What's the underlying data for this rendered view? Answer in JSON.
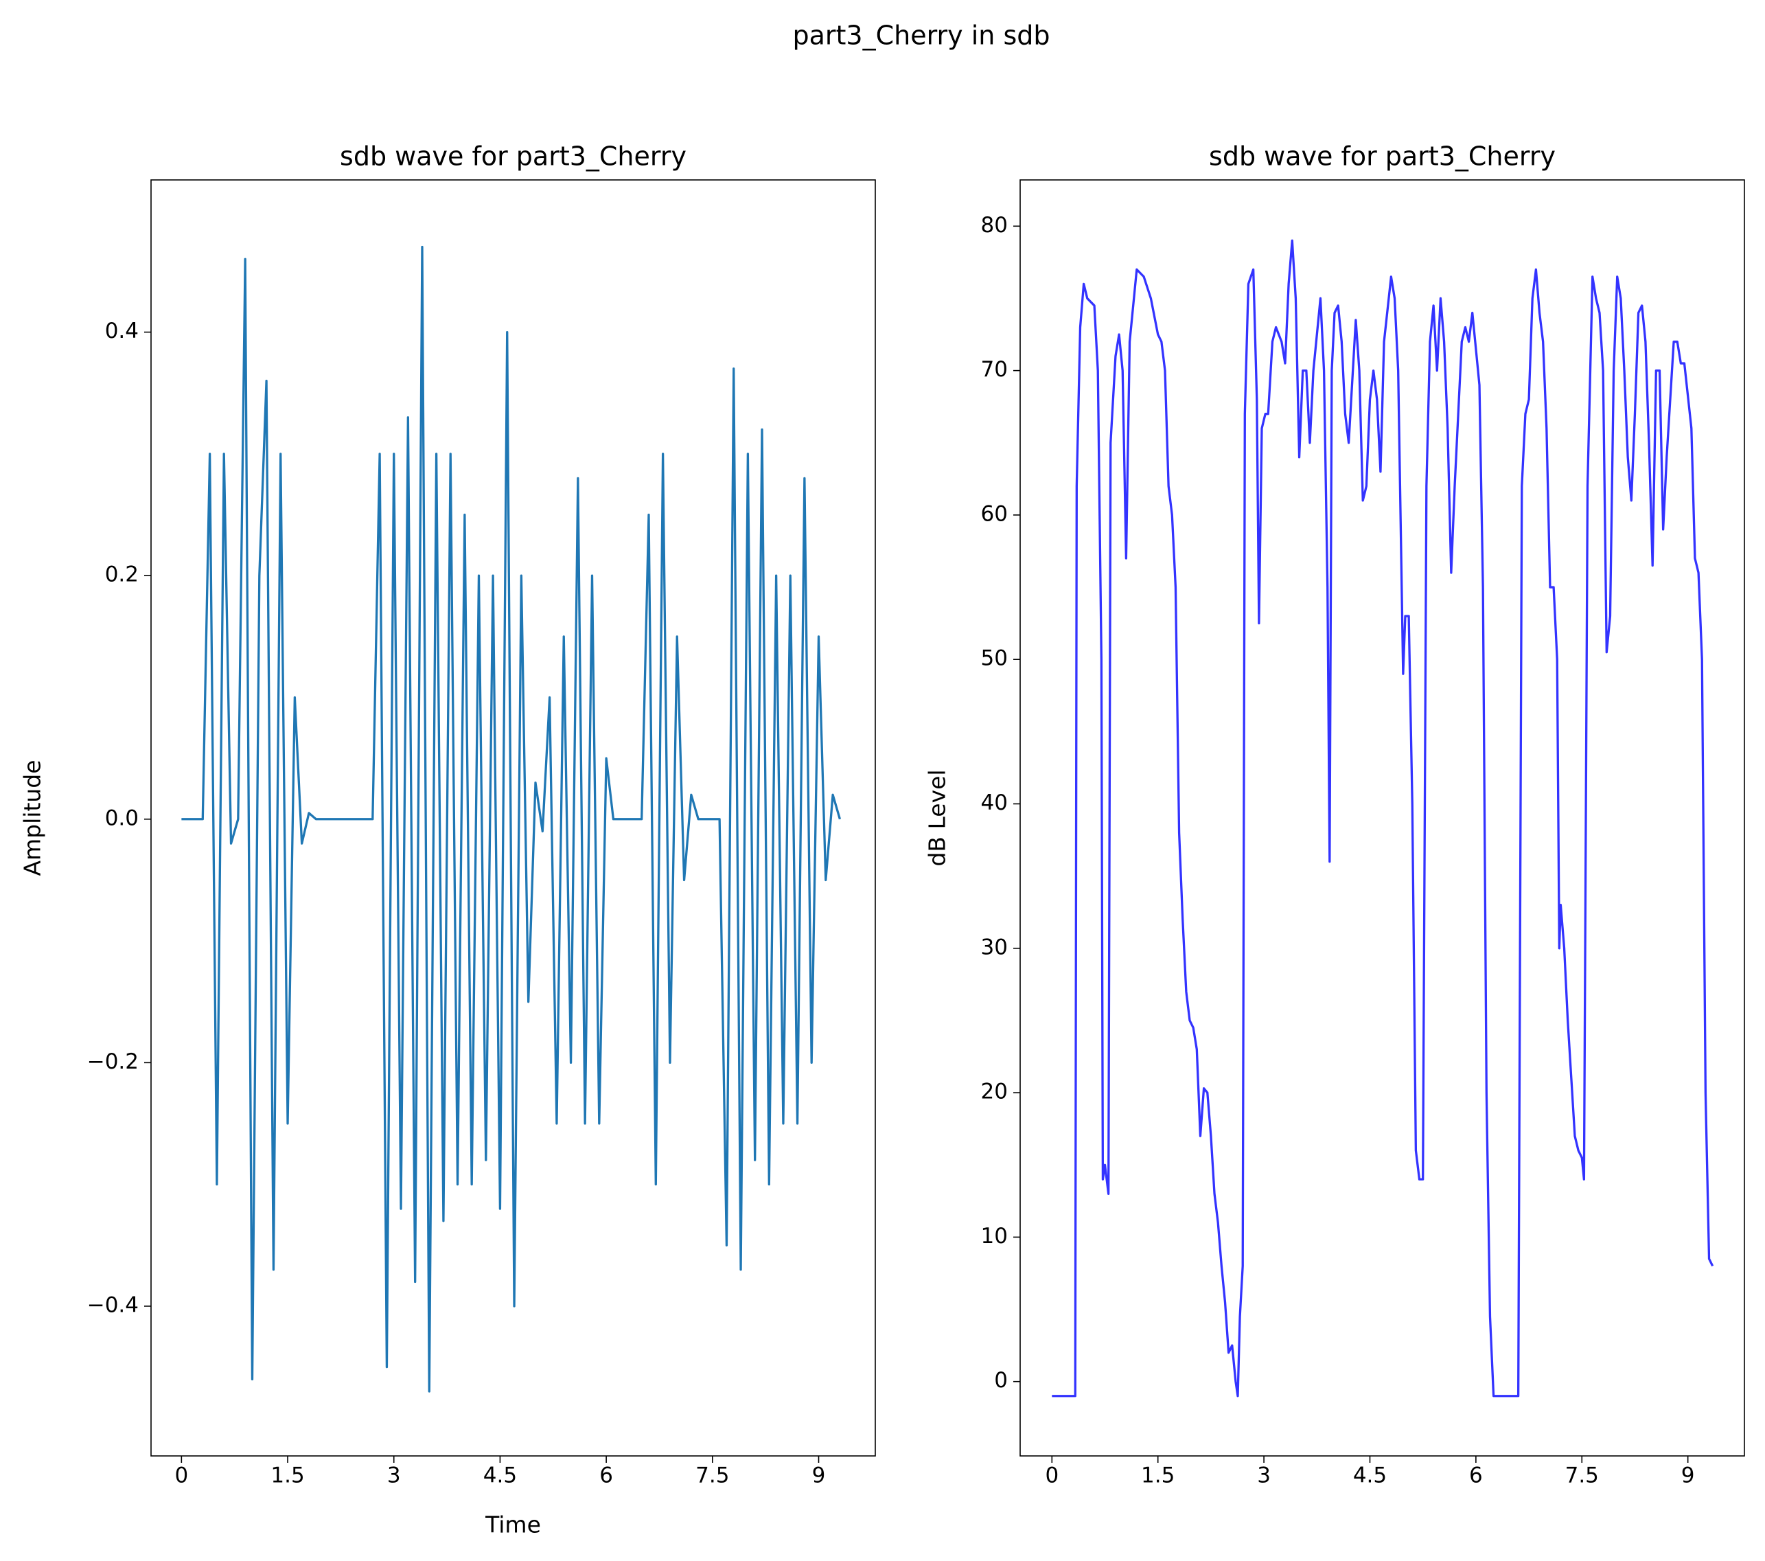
{
  "title": "part3_Cherry in sdb",
  "chart_data": [
    {
      "type": "line",
      "title": "sdb wave for part3_Cherry",
      "x_label": "Time",
      "y_label": "Amplitude",
      "color": "#1f77b4",
      "xlim": [
        -0.43,
        9.8
      ],
      "ylim": [
        -0.523,
        0.525
      ],
      "xticks": [
        0,
        1.5,
        3,
        4.5,
        6,
        7.5,
        9
      ],
      "yticks": [
        {
          "value": -0.4,
          "label": "−0.4"
        },
        {
          "value": -0.2,
          "label": "−0.2"
        },
        {
          "value": 0,
          "label": "0.0"
        },
        {
          "value": 0.2,
          "label": "0.2"
        },
        {
          "value": 0.4,
          "label": "0.4"
        }
      ],
      "x": [
        0,
        0.1,
        0.2,
        0.3,
        0.4,
        0.5,
        0.6,
        0.7,
        0.8,
        0.9,
        1.0,
        1.1,
        1.2,
        1.3,
        1.4,
        1.5,
        1.6,
        1.7,
        1.8,
        1.9,
        2.0,
        2.1,
        2.2,
        2.3,
        2.4,
        2.5,
        2.6,
        2.7,
        2.8,
        2.9,
        3.0,
        3.1,
        3.2,
        3.3,
        3.4,
        3.5,
        3.6,
        3.7,
        3.8,
        3.9,
        4.0,
        4.1,
        4.2,
        4.3,
        4.4,
        4.5,
        4.6,
        4.7,
        4.8,
        4.9,
        5.0,
        5.1,
        5.2,
        5.3,
        5.4,
        5.5,
        5.6,
        5.7,
        5.8,
        5.9,
        6.0,
        6.1,
        6.2,
        6.3,
        6.4,
        6.5,
        6.6,
        6.7,
        6.8,
        6.9,
        7.0,
        7.1,
        7.2,
        7.3,
        7.4,
        7.5,
        7.6,
        7.7,
        7.8,
        7.9,
        8.0,
        8.1,
        8.2,
        8.3,
        8.4,
        8.5,
        8.6,
        8.7,
        8.8,
        8.9,
        9.0,
        9.1,
        9.2,
        9.3
      ],
      "values": [
        0,
        0,
        0,
        0,
        0.3,
        -0.3,
        0.3,
        -0.02,
        0,
        0.46,
        -0.46,
        0.2,
        0.36,
        -0.37,
        0.3,
        -0.25,
        0.1,
        -0.02,
        0.005,
        0,
        0,
        0,
        0,
        0,
        0,
        0,
        0,
        0,
        0.3,
        -0.45,
        0.3,
        -0.32,
        0.33,
        -0.38,
        0.47,
        -0.47,
        0.3,
        -0.33,
        0.3,
        -0.3,
        0.25,
        -0.3,
        0.2,
        -0.28,
        0.2,
        -0.32,
        0.4,
        -0.4,
        0.2,
        -0.15,
        0.03,
        -0.01,
        0.1,
        -0.25,
        0.15,
        -0.2,
        0.28,
        -0.25,
        0.2,
        -0.25,
        0.05,
        0,
        0,
        0,
        0,
        0,
        0.25,
        -0.3,
        0.3,
        -0.2,
        0.15,
        -0.05,
        0.02,
        0,
        0,
        0,
        0,
        -0.35,
        0.37,
        -0.37,
        0.3,
        -0.28,
        0.32,
        -0.3,
        0.2,
        -0.25,
        0.2,
        -0.25,
        0.28,
        -0.2,
        0.15,
        -0.05,
        0.02,
        0
      ]
    },
    {
      "type": "line",
      "title": "sdb wave for part3_Cherry",
      "y_label": "dB Level",
      "color": "#3333ff",
      "xlim": [
        -0.45,
        9.8
      ],
      "ylim": [
        -5.15,
        83.2
      ],
      "xticks": [
        0,
        1.5,
        3,
        4.5,
        6,
        7.5,
        9
      ],
      "yticks": [
        0,
        10,
        20,
        30,
        40,
        50,
        60,
        70,
        80
      ],
      "x": [
        0,
        0.33,
        0.35,
        0.4,
        0.45,
        0.5,
        0.6,
        0.65,
        0.7,
        0.72,
        0.75,
        0.8,
        0.83,
        0.9,
        0.95,
        1.0,
        1.05,
        1.1,
        1.2,
        1.3,
        1.4,
        1.5,
        1.55,
        1.6,
        1.65,
        1.7,
        1.75,
        1.8,
        1.85,
        1.9,
        1.95,
        2.0,
        2.05,
        2.1,
        2.15,
        2.2,
        2.25,
        2.3,
        2.35,
        2.4,
        2.45,
        2.5,
        2.55,
        2.6,
        2.63,
        2.66,
        2.7,
        2.73,
        2.78,
        2.85,
        2.9,
        2.93,
        2.97,
        3.02,
        3.06,
        3.12,
        3.17,
        3.25,
        3.3,
        3.35,
        3.4,
        3.45,
        3.5,
        3.55,
        3.6,
        3.65,
        3.7,
        3.8,
        3.85,
        3.9,
        3.93,
        3.96,
        4.0,
        4.05,
        4.1,
        4.15,
        4.2,
        4.3,
        4.35,
        4.4,
        4.45,
        4.5,
        4.55,
        4.6,
        4.65,
        4.7,
        4.8,
        4.85,
        4.9,
        4.97,
        5.0,
        5.05,
        5.1,
        5.15,
        5.2,
        5.25,
        5.3,
        5.35,
        5.4,
        5.45,
        5.5,
        5.55,
        5.6,
        5.65,
        5.7,
        5.8,
        5.85,
        5.9,
        5.95,
        6.05,
        6.1,
        6.15,
        6.2,
        6.25,
        6.6,
        6.65,
        6.7,
        6.75,
        6.8,
        6.85,
        6.9,
        6.95,
        7.0,
        7.05,
        7.1,
        7.15,
        7.18,
        7.2,
        7.25,
        7.3,
        7.35,
        7.4,
        7.45,
        7.5,
        7.53,
        7.58,
        7.65,
        7.7,
        7.75,
        7.8,
        7.85,
        7.9,
        7.95,
        8.0,
        8.05,
        8.1,
        8.15,
        8.2,
        8.25,
        8.3,
        8.35,
        8.4,
        8.45,
        8.5,
        8.55,
        8.6,
        8.65,
        8.7,
        8.8,
        8.85,
        8.9,
        8.95,
        9.05,
        9.1,
        9.15,
        9.2,
        9.25,
        9.3,
        9.35
      ],
      "values": [
        -1,
        -1,
        62,
        73,
        76,
        75,
        74.5,
        70,
        50,
        14,
        15,
        13,
        65,
        71,
        72.5,
        70,
        57,
        72,
        77,
        76.5,
        75,
        72.5,
        72,
        70,
        62,
        60,
        55,
        38,
        32,
        27,
        25,
        24.5,
        23,
        17,
        20.3,
        20,
        17,
        13,
        11,
        8,
        5.5,
        2,
        2.5,
        0,
        -1,
        4.5,
        8,
        67,
        76,
        77,
        68,
        52.5,
        66,
        67,
        67,
        72,
        73,
        72,
        70.5,
        76,
        79,
        75,
        64,
        70,
        70,
        65,
        70,
        75,
        70,
        55,
        36,
        70,
        74,
        74.5,
        72,
        67,
        65,
        73.5,
        70,
        61,
        62,
        68,
        70,
        68,
        63,
        72,
        76.5,
        75,
        70,
        49,
        53,
        53,
        40,
        16,
        14,
        14,
        62,
        72,
        74.5,
        70,
        75,
        72,
        66,
        56,
        62,
        72,
        73,
        72,
        74,
        69,
        55,
        20,
        4.5,
        -1,
        -1,
        62,
        67,
        68,
        75,
        77,
        74,
        72,
        66,
        55,
        55,
        50,
        30,
        33,
        30,
        25,
        21,
        17,
        16,
        15.5,
        14,
        62,
        76.5,
        75,
        74,
        70,
        50.5,
        53,
        70,
        76.5,
        75,
        70,
        64,
        61,
        67,
        74,
        74.5,
        72,
        65,
        56.5,
        70,
        70,
        59,
        64,
        72,
        72,
        70.5,
        70.5,
        66,
        57,
        56,
        50,
        20,
        8.5,
        8
      ]
    }
  ]
}
